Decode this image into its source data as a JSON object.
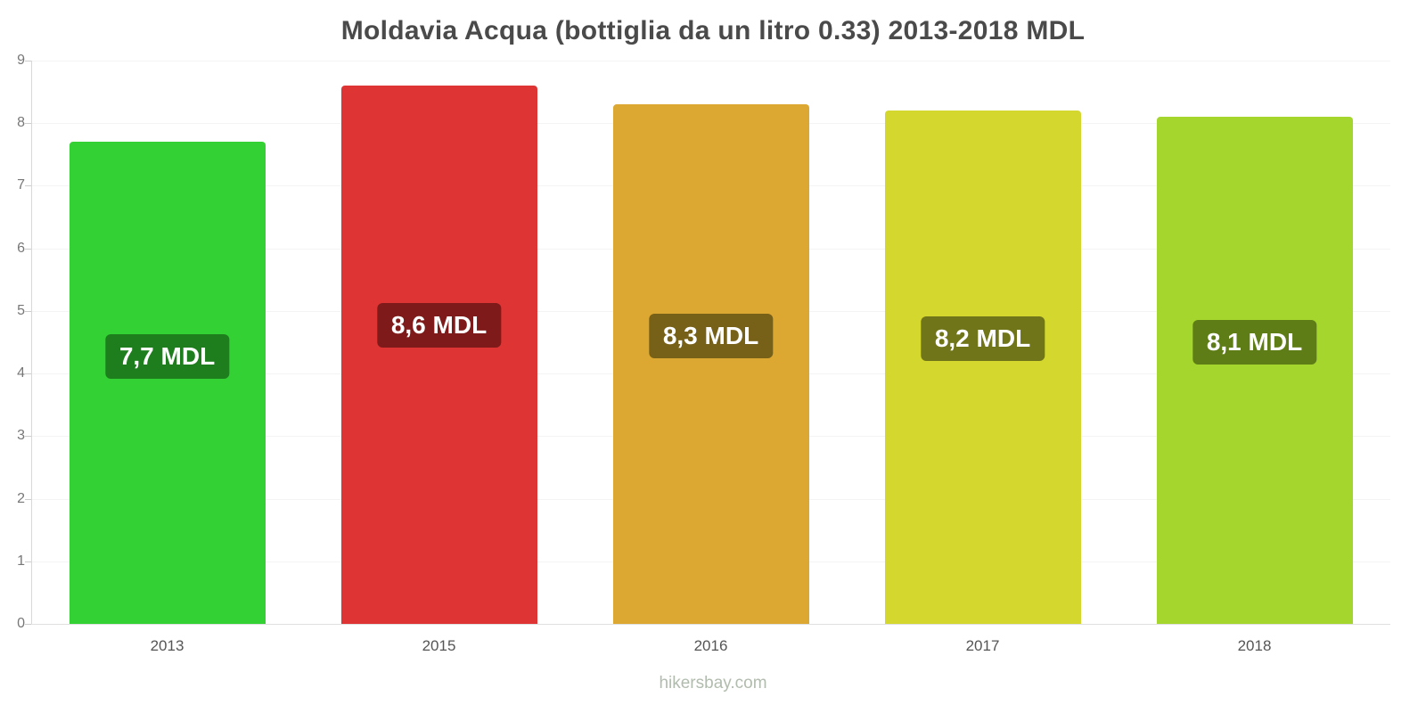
{
  "chart_data": {
    "type": "bar",
    "title": "Moldavia Acqua (bottiglia da un litro 0.33) 2013-2018 MDL",
    "categories": [
      "2013",
      "2015",
      "2016",
      "2017",
      "2018"
    ],
    "values": [
      7.7,
      8.6,
      8.3,
      8.2,
      8.1
    ],
    "bar_labels": [
      "7,7 MDL",
      "8,6 MDL",
      "8,3 MDL",
      "8,2 MDL",
      "8,1 MDL"
    ],
    "bar_colors": [
      "#33d133",
      "#de3434",
      "#dca832",
      "#d3d72e",
      "#a4d62e"
    ],
    "label_bg_colors": [
      "#1e7e1e",
      "#7e1a1a",
      "#776018",
      "#6f7518",
      "#5e7d16"
    ],
    "xlabel": "",
    "ylabel": "",
    "ylim": [
      0,
      9
    ],
    "yticks": [
      0,
      1,
      2,
      3,
      4,
      5,
      6,
      7,
      8,
      9
    ],
    "grid": true,
    "legend": false
  },
  "footer": {
    "text": "hikersbay.com"
  }
}
